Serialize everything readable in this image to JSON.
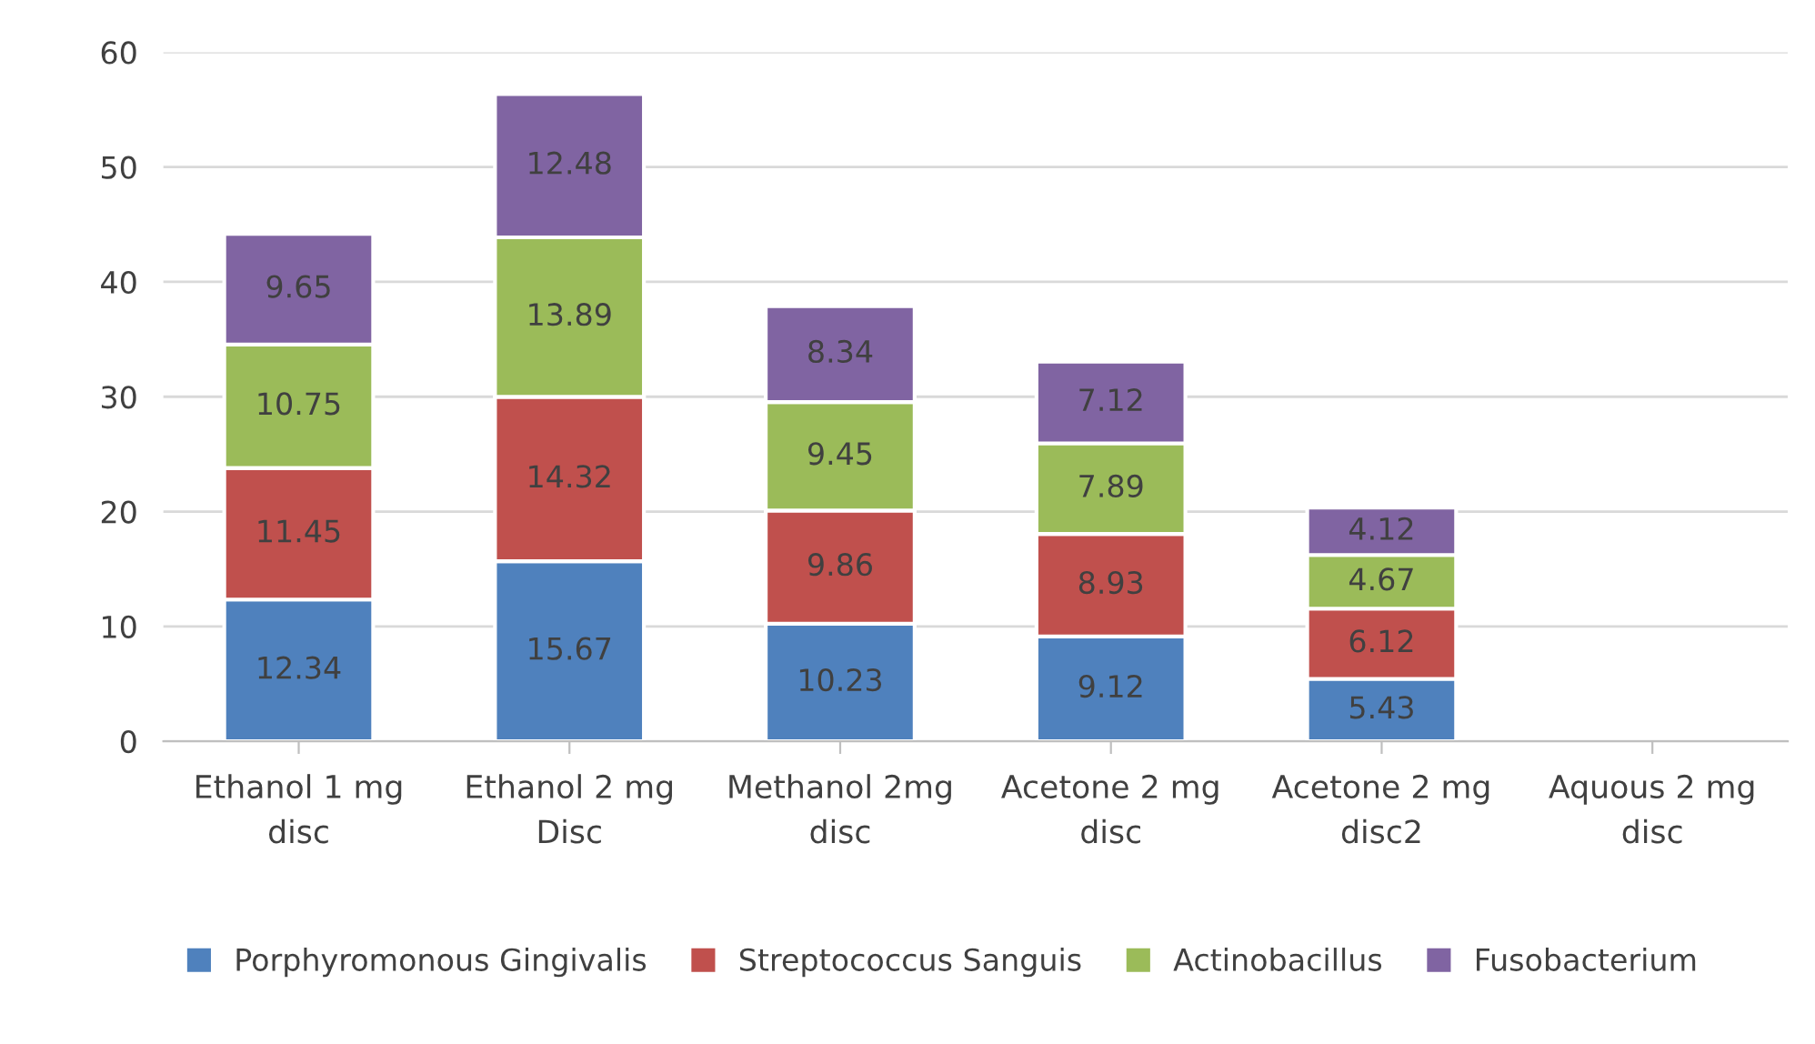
{
  "chart_data": {
    "type": "bar",
    "stacked": true,
    "categories": [
      "Ethanol 1 mg disc",
      "Ethanol 2 mg Disc",
      "Methanol 2mg disc",
      "Acetone 2 mg disc",
      "Acetone 2 mg disc2",
      "Aquous 2 mg disc"
    ],
    "series": [
      {
        "name": "Porphyromonous Gingivalis",
        "color": "#4f81bd",
        "values": [
          12.34,
          15.67,
          10.23,
          9.12,
          5.43,
          null
        ]
      },
      {
        "name": "Streptococcus Sanguis",
        "color": "#c0504d",
        "values": [
          11.45,
          14.32,
          9.86,
          8.93,
          6.12,
          null
        ]
      },
      {
        "name": "Actinobacillus",
        "color": "#9bbb59",
        "values": [
          10.75,
          13.89,
          9.45,
          7.89,
          4.67,
          null
        ]
      },
      {
        "name": "Fusobacterium",
        "color": "#8064a2",
        "values": [
          9.65,
          12.48,
          8.34,
          7.12,
          4.12,
          null
        ]
      }
    ],
    "ylim": [
      0,
      60
    ],
    "yticks": [
      0,
      10,
      20,
      30,
      40,
      50,
      60
    ],
    "grid": "y",
    "legend": "bottom",
    "data_labels": true
  }
}
